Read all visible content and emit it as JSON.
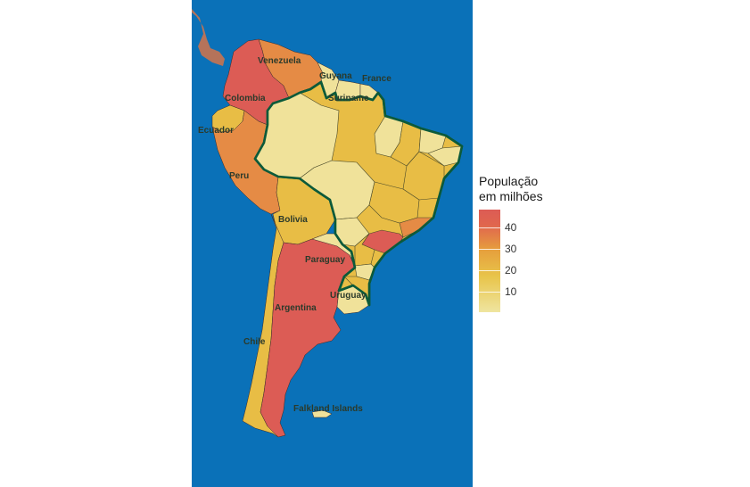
{
  "colors": {
    "ocean": "#0a71b8",
    "neighbor_land": "#b5735a",
    "high": "#dc5c55",
    "mid_high": "#e58b45",
    "mid": "#e8bd45",
    "low": "#f0e29a",
    "brazil_border": "#0c5a3a"
  },
  "labels": {
    "venezuela": "Venezuela",
    "guyana": "Guyana",
    "france": "France",
    "suriname": "Suriname",
    "colombia": "Colombia",
    "ecuador": "Ecuador",
    "peru": "Peru",
    "bolivia": "Bolivia",
    "paraguay": "Paraguay",
    "uruguay": "Uruguay",
    "argentina": "Argentina",
    "chile": "Chile",
    "falkland": "Falkland Islands"
  },
  "legend": {
    "title_line1": "População",
    "title_line2": "em milhões",
    "ticks": [
      "40",
      "30",
      "20",
      "10"
    ]
  }
}
